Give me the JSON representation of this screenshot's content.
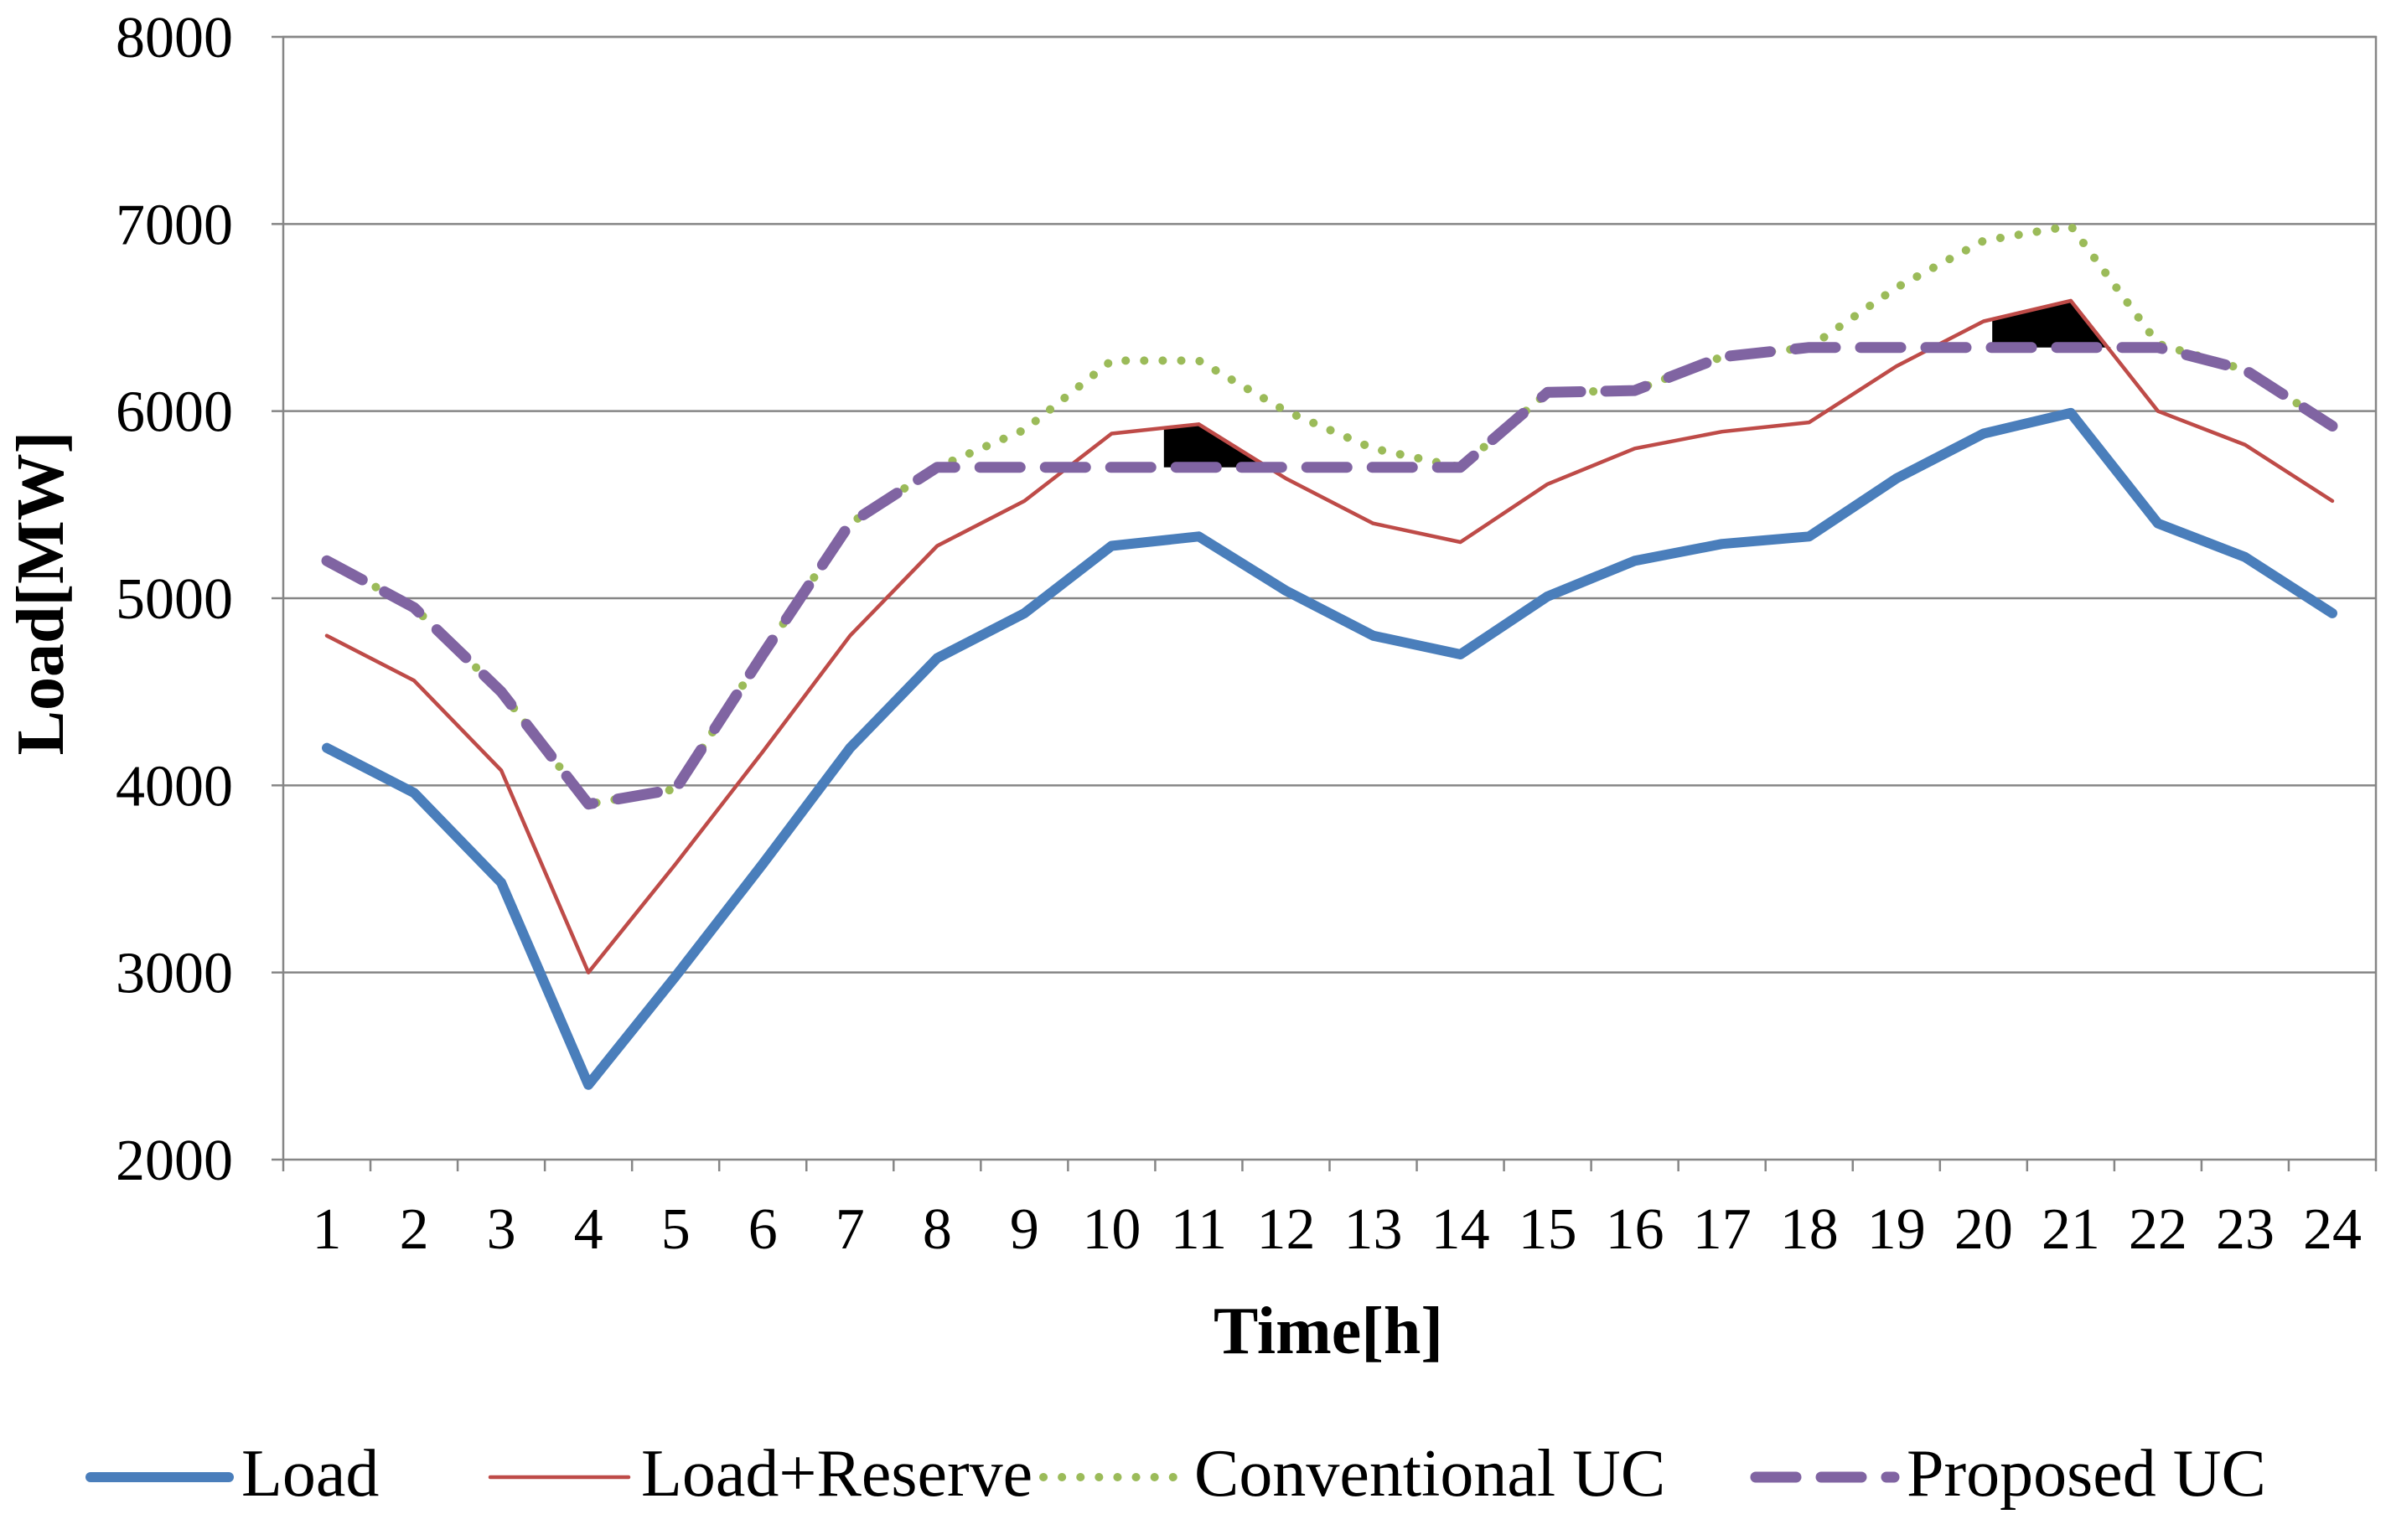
{
  "chart_data": {
    "type": "line",
    "title": "",
    "xlabel": "Time[h]",
    "ylabel": "Load[MW]",
    "categories": [
      "1",
      "2",
      "3",
      "4",
      "5",
      "6",
      "7",
      "8",
      "9",
      "10",
      "11",
      "12",
      "13",
      "14",
      "15",
      "16",
      "17",
      "18",
      "19",
      "20",
      "21",
      "22",
      "23",
      "24"
    ],
    "ylim": [
      2000,
      8000
    ],
    "yticks": [
      2000,
      3000,
      4000,
      5000,
      6000,
      7000,
      8000
    ],
    "grid": true,
    "legend_position": "bottom",
    "series": [
      {
        "name": "Load",
        "style": "solid-thick",
        "color": "#4A7EBB",
        "values": [
          4200,
          3960,
          3480,
          2400,
          2980,
          3580,
          4200,
          4680,
          4920,
          5280,
          5330,
          5040,
          4800,
          4700,
          5010,
          5200,
          5290,
          5330,
          5640,
          5880,
          5990,
          5400,
          5220,
          4920
        ]
      },
      {
        "name": "Load+Reserve",
        "style": "solid-thin",
        "color": "#BE4B48",
        "values": [
          4800,
          4560,
          4080,
          3000,
          3580,
          4180,
          4800,
          5280,
          5520,
          5880,
          5930,
          5640,
          5400,
          5300,
          5610,
          5800,
          5890,
          5940,
          6240,
          6480,
          6590,
          6000,
          5820,
          5520
        ]
      },
      {
        "name": "Conventional UC",
        "style": "dotted",
        "color": "#9BBB59",
        "values": [
          5200,
          4950,
          4500,
          3900,
          3980,
          4700,
          5400,
          5700,
          5900,
          6270,
          6270,
          6000,
          5800,
          5700,
          6100,
          6110,
          6290,
          6340,
          6660,
          6910,
          6990,
          6360,
          6220,
          5920
        ]
      },
      {
        "name": "Proposed UC",
        "style": "dashed",
        "color": "#8064A2",
        "values": [
          5200,
          4950,
          4500,
          3900,
          3980,
          4700,
          5400,
          5700,
          5700,
          5700,
          5700,
          5700,
          5700,
          5700,
          6100,
          6110,
          6290,
          6340,
          6340,
          6340,
          6340,
          6340,
          6220,
          5920
        ]
      }
    ],
    "shaded_regions": [
      {
        "description": "deficit",
        "color": "#000000",
        "x_range": [
          9.6,
          11.8
        ]
      },
      {
        "description": "deficit",
        "color": "#000000",
        "x_range": [
          19.1,
          21.2
        ]
      }
    ]
  }
}
